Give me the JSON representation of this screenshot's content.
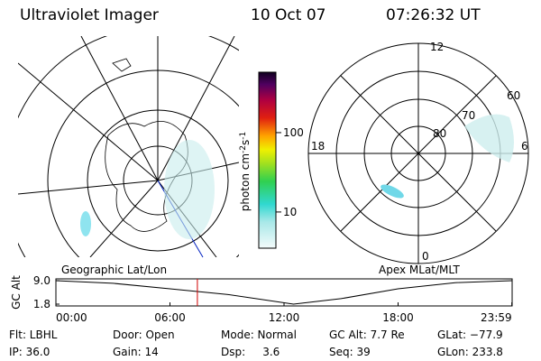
{
  "header": {
    "instrument": "Ultraviolet Imager",
    "date": "10 Oct 07",
    "time": "07:26:32 UT"
  },
  "colorbar": {
    "label": [
      "photon cm",
      "-2",
      "s",
      "-1"
    ],
    "lim": [
      3.5,
      577
    ],
    "log": true,
    "ticks": [
      10,
      100
    ]
  },
  "geo_map": {
    "label": "Geographic Lat/Lon"
  },
  "mlt_map": {
    "label": "Apex MLat/MLT",
    "mlt_labels": [
      "12",
      "6",
      "0",
      "18"
    ],
    "mlat_labels": [
      "60",
      "70",
      "80"
    ]
  },
  "altitude": {
    "ylabel": "GC Alt",
    "ylim": [
      1.8,
      9
    ],
    "yticks": [
      {
        "value": 9,
        "label": "9.0"
      },
      {
        "value": 1.8,
        "label": "1.8"
      }
    ],
    "xlim": [
      0,
      24
    ],
    "xticks": [
      {
        "value": 0,
        "label": "00:00"
      },
      {
        "value": 6,
        "label": "06:00"
      },
      {
        "value": 12,
        "label": "12:00"
      },
      {
        "value": 18,
        "label": "18:00"
      },
      {
        "value": 23.983,
        "label": "23:59"
      }
    ],
    "x": [
      0,
      3,
      6,
      9,
      12.5,
      15,
      18,
      21,
      23.983
    ],
    "y": [
      9,
      8.2,
      6.5,
      4.8,
      1.8,
      3.5,
      6.5,
      8.4,
      9
    ],
    "marker": 7.442,
    "color": "#000000",
    "marker_color": "#d00000"
  },
  "info": [
    [
      "Flt: LBHL",
      "Door: Open",
      "Mode: Normal",
      "GC Alt: 7.7 Re",
      "GLat: −77.9"
    ],
    [
      "IP: 36.0",
      "Gain: 14",
      "Dsp:     3.6",
      "Seq: 39",
      "GLon: 233.8"
    ]
  ]
}
